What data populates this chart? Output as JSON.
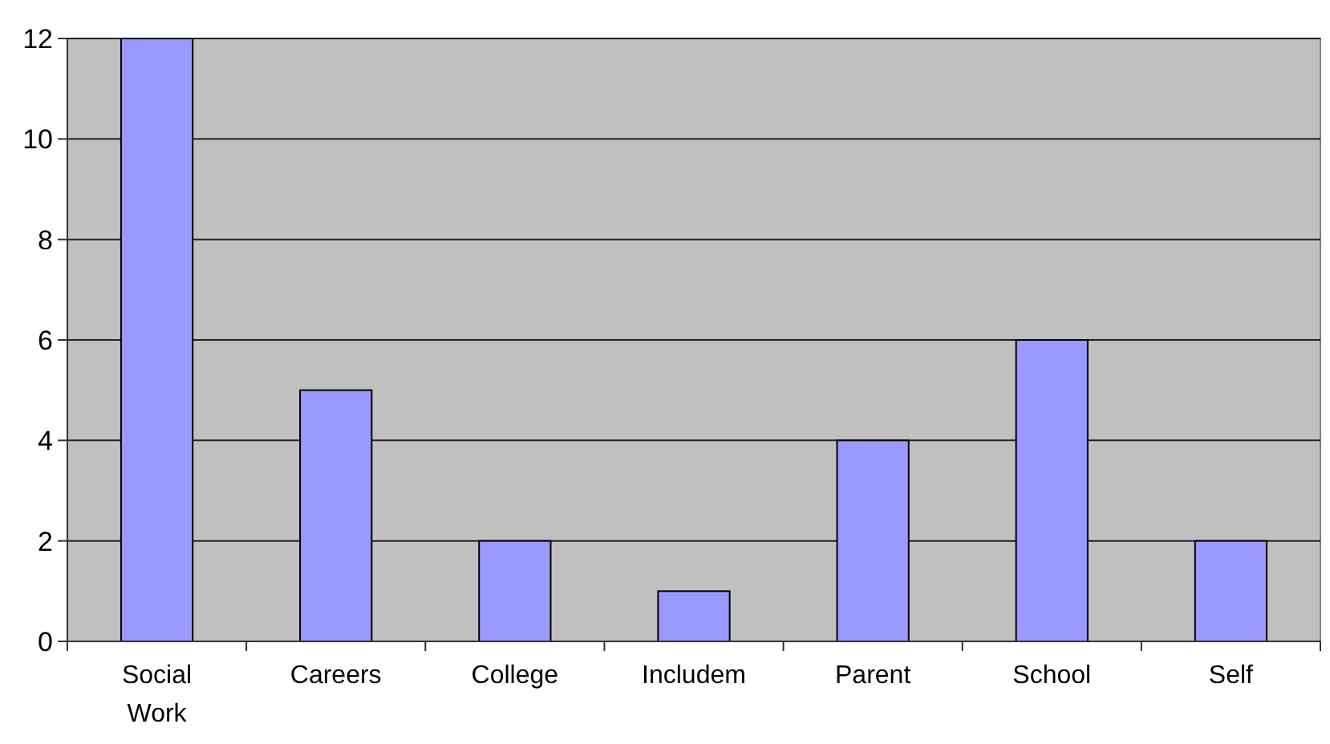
{
  "chart_data": {
    "type": "bar",
    "categories": [
      "Social Work",
      "Careers",
      "College",
      "Includem",
      "Parent",
      "School",
      "Self"
    ],
    "values": [
      12,
      5,
      2,
      1,
      4,
      6,
      2
    ],
    "color": "#9999ff",
    "ylim": [
      0,
      12
    ],
    "yticks": [
      0,
      2,
      4,
      6,
      8,
      10,
      12
    ],
    "grid": "y"
  }
}
